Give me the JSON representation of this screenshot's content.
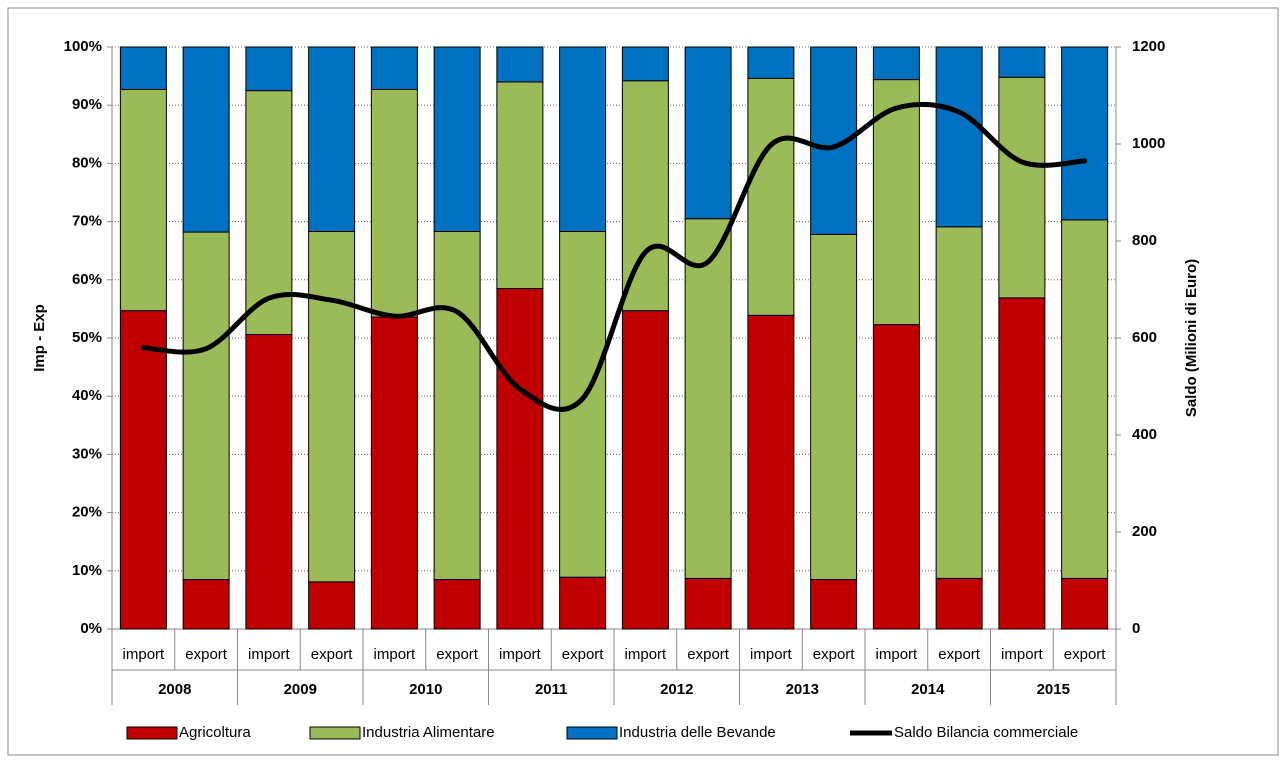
{
  "chart_data": {
    "type": "bar",
    "stacked": true,
    "categories": [
      "import",
      "export",
      "import",
      "export",
      "import",
      "export",
      "import",
      "export",
      "import",
      "export",
      "import",
      "export",
      "import",
      "export",
      "import",
      "export"
    ],
    "groups": [
      "2008",
      "2009",
      "2010",
      "2011",
      "2012",
      "2013",
      "2014",
      "2015"
    ],
    "ylabel": "Imp - Exp",
    "y2label": "Saldo (Milioni di Euro)",
    "ylim": [
      0,
      100
    ],
    "yticks": [
      {
        "value": 0,
        "label": "0%"
      },
      {
        "value": 10,
        "label": "10%"
      },
      {
        "value": 20,
        "label": "20%"
      },
      {
        "value": 30,
        "label": "30%"
      },
      {
        "value": 40,
        "label": "40%"
      },
      {
        "value": 50,
        "label": "50%"
      },
      {
        "value": 60,
        "label": "60%"
      },
      {
        "value": 70,
        "label": "70%"
      },
      {
        "value": 80,
        "label": "80%"
      },
      {
        "value": 90,
        "label": "90%"
      },
      {
        "value": 100,
        "label": "100%"
      }
    ],
    "y2lim": [
      0,
      1200
    ],
    "y2ticks": [
      0,
      200,
      400,
      600,
      800,
      1000,
      1200
    ],
    "grid": true,
    "legend": "bottom",
    "series": [
      {
        "name": "Agricoltura",
        "color": "#c00000",
        "values": [
          54.7,
          8.5,
          50.6,
          8.1,
          53.6,
          8.5,
          58.5,
          8.9,
          54.7,
          8.7,
          53.9,
          8.5,
          52.3,
          8.7,
          56.9,
          8.7
        ]
      },
      {
        "name": "Industria Alimentare",
        "color": "#9bbb59",
        "values": [
          38.0,
          59.7,
          41.9,
          60.2,
          39.1,
          59.8,
          35.5,
          59.4,
          39.5,
          61.8,
          40.7,
          59.3,
          42.1,
          60.4,
          37.9,
          61.6
        ]
      },
      {
        "name": "Industria delle Bevande",
        "color": "#0070c0",
        "values": [
          7.3,
          31.8,
          7.5,
          31.7,
          7.3,
          31.7,
          6.0,
          31.7,
          5.8,
          29.5,
          5.4,
          32.2,
          5.6,
          30.9,
          5.2,
          29.7
        ]
      },
      {
        "name": "Saldo Bilancia commerciale",
        "color": "#000000",
        "type": "line",
        "axis": "y2",
        "values": [
          580,
          578,
          682,
          678,
          645,
          654,
          495,
          475,
          777,
          757,
          998,
          994,
          1074,
          1066,
          963,
          965
        ]
      }
    ]
  }
}
